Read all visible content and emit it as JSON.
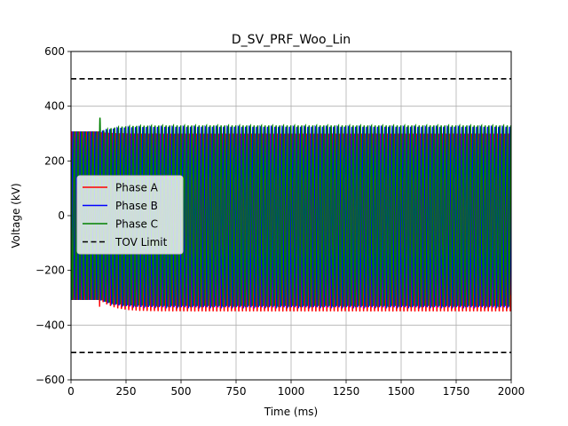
{
  "chart_data": {
    "type": "line",
    "title": "D_SV_PRF_Woo_Lin",
    "xlabel": "Time (ms)",
    "ylabel": "Voltage (kV)",
    "xlim": [
      0,
      2000
    ],
    "ylim": [
      -600,
      600
    ],
    "xticks": [
      0,
      250,
      500,
      750,
      1000,
      1250,
      1500,
      1750,
      2000
    ],
    "yticks": [
      -600,
      -400,
      -200,
      0,
      200,
      400,
      600
    ],
    "xtick_labels": [
      "0",
      "250",
      "500",
      "750",
      "1000",
      "1250",
      "1500",
      "1750",
      "2000"
    ],
    "ytick_labels": [
      "−600",
      "−400",
      "−200",
      "0",
      "200",
      "400",
      "600"
    ],
    "grid": true,
    "legend_position": "center-left",
    "signal": {
      "frequency_hz": 60,
      "prefault_amplitude_kv": 306,
      "event_time_ms": 130,
      "transient_peak_kv": {
        "Phase A": -350,
        "Phase B": 440,
        "Phase C": 400
      }
    },
    "series": [
      {
        "name": "Phase A",
        "color": "#ff0000",
        "style": "solid",
        "steady_max_kv": 300,
        "steady_min_kv": -350
      },
      {
        "name": "Phase B",
        "color": "#0000ff",
        "style": "solid",
        "steady_max_kv": 325,
        "steady_min_kv": -335
      },
      {
        "name": "Phase C",
        "color": "#008000",
        "style": "solid",
        "steady_max_kv": 330,
        "steady_min_kv": -330
      },
      {
        "name": "TOV Limit",
        "color": "#000000",
        "style": "dashed",
        "values_kv": [
          500,
          -500
        ]
      }
    ]
  }
}
